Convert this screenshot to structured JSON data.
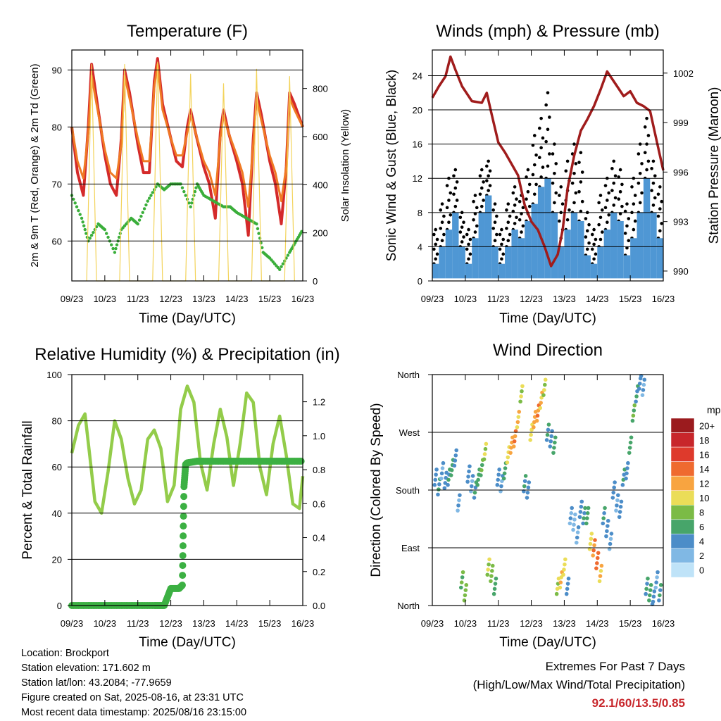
{
  "panels": {
    "temperature": {
      "title": "Temperature (F)",
      "ylabel_left": "2m & 9m T (Red, Orange) & 2m Td (Green)",
      "ylabel_right": "Solar Insolation (Yellow)",
      "xlabel": "Time (Day/UTC)"
    },
    "winds": {
      "title": "Winds (mph) & Pressure (mb)",
      "ylabel_left": "Sonic Wind & Gust (Blue, Black)",
      "ylabel_right": "Station Pressure (Maroon)",
      "xlabel": "Time (Day/UTC)"
    },
    "humidity": {
      "title": "Relative Humidity (%) & Precipitation (in)",
      "ylabel_left": "Percent & Total Rainfall",
      "xlabel": "Time (Day/UTC)"
    },
    "direction": {
      "title": "Wind Direction",
      "ylabel_left": "Direction (Colored By Speed)",
      "xlabel": "Time (Day/UTC)",
      "colorbar_title": "mph"
    }
  },
  "info": {
    "location": "Location: Brockport",
    "elevation": "Station elevation: 171.602 m",
    "latlon": "Station lat/lon: 43.2084; -77.9659",
    "created": "Figure created on Sat, 2025-08-16, at 23:31 UTC",
    "recent": "Most recent data timestamp: 2025/08/16 23:15:00"
  },
  "extremes": {
    "title": "Extremes For Past 7 Days",
    "subtitle": "(High/Low/Max Wind/Total Precipitation)",
    "values": "92.1/60/13.5/0.85"
  },
  "colors": {
    "temp2m": "#d42a2a",
    "temp9m": "#f07a24",
    "dewpoint": "#3aae3a",
    "solar": "#f3d35a",
    "gust": "#000000",
    "wind": "#4f97d4",
    "pressure": "#a01c1c",
    "rh": "#93cc4a",
    "precip": "#3cb043"
  },
  "chart_data": [
    {
      "type": "line",
      "name": "temperature",
      "x_ticks": [
        "09/23",
        "10/23",
        "11/23",
        "12/23",
        "13/23",
        "14/23",
        "15/23",
        "16/23"
      ],
      "xlim": [
        0,
        7
      ],
      "ylim": [
        53,
        93.5
      ],
      "y_ticks": [
        60,
        70,
        80,
        90
      ],
      "y2lim": [
        0,
        960
      ],
      "y2_ticks": [
        0,
        200,
        400,
        600,
        800
      ],
      "series": [
        {
          "color_key": "temp2m",
          "axis": "y",
          "x": [
            0,
            0.17,
            0.35,
            0.5,
            0.6,
            0.75,
            1.0,
            1.17,
            1.35,
            1.5,
            1.6,
            1.75,
            2.0,
            2.17,
            2.35,
            2.5,
            2.6,
            2.75,
            3.0,
            3.17,
            3.35,
            3.5,
            3.6,
            3.75,
            4.0,
            4.17,
            4.35,
            4.5,
            4.6,
            4.75,
            5.0,
            5.17,
            5.35,
            5.5,
            5.6,
            5.75,
            6.0,
            6.17,
            6.35,
            6.5,
            6.6,
            6.75,
            7.0
          ],
          "y": [
            80,
            72,
            68,
            80,
            91,
            85,
            75,
            70,
            68,
            78,
            90,
            86,
            77,
            72,
            72,
            88,
            92,
            84,
            78,
            74,
            73,
            80,
            83,
            79,
            73,
            70,
            64,
            79,
            83,
            79,
            74,
            70,
            61,
            78,
            86,
            82,
            74,
            70,
            63,
            73,
            86,
            84,
            80
          ]
        },
        {
          "color_key": "temp9m",
          "axis": "y",
          "x": [
            0,
            0.17,
            0.35,
            0.5,
            0.6,
            0.75,
            1.0,
            1.17,
            1.35,
            1.5,
            1.6,
            1.75,
            2.0,
            2.17,
            2.35,
            2.5,
            2.6,
            2.75,
            3.0,
            3.17,
            3.35,
            3.5,
            3.6,
            3.75,
            4.0,
            4.17,
            4.35,
            4.5,
            4.6,
            4.75,
            5.0,
            5.17,
            5.35,
            5.5,
            5.6,
            5.75,
            6.0,
            6.17,
            6.35,
            6.5,
            6.6,
            6.75,
            7.0
          ],
          "y": [
            80,
            74,
            71,
            79,
            89,
            84,
            76,
            72,
            71,
            77,
            89,
            85,
            78,
            74,
            74,
            87,
            91,
            83,
            78,
            75,
            75,
            79,
            82,
            79,
            74,
            72,
            68,
            78,
            82,
            79,
            75,
            72,
            66,
            77,
            85,
            81,
            75,
            72,
            67,
            73,
            85,
            83,
            80
          ]
        },
        {
          "color_key": "dewpoint",
          "axis": "y",
          "x": [
            0,
            0.3,
            0.5,
            0.8,
            1.0,
            1.3,
            1.5,
            1.8,
            2.0,
            2.3,
            2.6,
            2.8,
            3.0,
            3.3,
            3.6,
            3.8,
            4.0,
            4.3,
            4.6,
            4.8,
            5.0,
            5.3,
            5.6,
            5.8,
            6.0,
            6.3,
            6.6,
            6.8,
            7.0
          ],
          "y": [
            68,
            64,
            60,
            63,
            62,
            58,
            62,
            64,
            63,
            67,
            70,
            69,
            70,
            70,
            66,
            70,
            68,
            67,
            66,
            66,
            65,
            64,
            63,
            58,
            57,
            55,
            58,
            60,
            62
          ]
        },
        {
          "color_key": "solar",
          "axis": "y2",
          "x": [
            0.45,
            0.6,
            0.75,
            1.45,
            1.6,
            1.75,
            2.45,
            2.6,
            2.75,
            3.45,
            3.6,
            3.75,
            4.45,
            4.6,
            4.75,
            5.45,
            5.6,
            5.75,
            6.45,
            6.6,
            6.75
          ],
          "y": [
            0,
            900,
            0,
            0,
            900,
            0,
            0,
            910,
            0,
            0,
            860,
            0,
            0,
            820,
            0,
            0,
            880,
            0,
            0,
            850,
            0
          ]
        }
      ]
    },
    {
      "type": "scatter",
      "name": "winds",
      "x_ticks": [
        "09/23",
        "10/23",
        "11/23",
        "12/23",
        "13/23",
        "14/23",
        "15/23",
        "16/23"
      ],
      "xlim": [
        0,
        7
      ],
      "ylim": [
        0,
        27
      ],
      "y_ticks": [
        0,
        4,
        8,
        12,
        16,
        20,
        24
      ],
      "y2lim": [
        989.4,
        1003.4
      ],
      "y2_ticks": [
        990,
        993,
        996,
        999,
        1002
      ],
      "series": [
        {
          "color_key": "gust",
          "axis": "y",
          "x": [
            0.1,
            0.3,
            0.5,
            0.7,
            0.9,
            1.1,
            1.3,
            1.5,
            1.7,
            1.9,
            2.1,
            2.3,
            2.5,
            2.7,
            2.9,
            3.1,
            3.3,
            3.5,
            3.7,
            3.9,
            4.1,
            4.3,
            4.5,
            4.7,
            4.9,
            5.1,
            5.3,
            5.5,
            5.7,
            5.9,
            6.1,
            6.3,
            6.5,
            6.7,
            6.9
          ],
          "y": [
            6,
            9,
            12,
            13,
            8,
            6,
            10,
            13,
            14,
            9,
            6,
            9,
            11,
            10,
            13,
            17,
            19,
            22,
            16,
            11,
            14,
            16,
            15,
            8,
            6,
            10,
            12,
            14,
            13,
            9,
            12,
            16,
            19,
            14,
            11
          ]
        },
        {
          "color_key": "wind",
          "axis": "y",
          "x": [
            0.1,
            0.3,
            0.5,
            0.7,
            0.9,
            1.1,
            1.3,
            1.5,
            1.7,
            1.9,
            2.1,
            2.3,
            2.5,
            2.7,
            2.9,
            3.1,
            3.3,
            3.5,
            3.7,
            3.9,
            4.1,
            4.3,
            4.5,
            4.7,
            4.9,
            5.1,
            5.3,
            5.5,
            5.7,
            5.9,
            6.1,
            6.3,
            6.5,
            6.7,
            6.9
          ],
          "y": [
            2,
            4,
            6,
            8,
            4,
            2,
            5,
            8,
            10,
            4,
            2,
            4,
            6,
            5,
            7,
            9,
            11,
            12,
            8,
            4,
            6,
            8,
            7,
            3,
            2,
            4,
            6,
            8,
            7,
            3,
            5,
            8,
            12,
            8,
            5
          ]
        },
        {
          "color_key": "pressure",
          "axis": "y2",
          "x": [
            0,
            0.2,
            0.4,
            0.55,
            0.7,
            0.9,
            1.2,
            1.5,
            1.65,
            1.8,
            2.0,
            2.2,
            2.4,
            2.6,
            2.8,
            3.0,
            3.2,
            3.4,
            3.6,
            3.8,
            3.95,
            4.1,
            4.3,
            4.5,
            4.7,
            4.9,
            5.1,
            5.3,
            5.6,
            5.8,
            6.0,
            6.2,
            6.4,
            6.6,
            6.8,
            7.0
          ],
          "y": [
            1000.5,
            1001.2,
            1001.8,
            1003.0,
            1002.2,
            1001.2,
            1000.3,
            1000.2,
            1000.8,
            999.5,
            997.8,
            997.2,
            996.5,
            995.8,
            994.0,
            993.0,
            992.5,
            991.5,
            990.3,
            991.0,
            992.5,
            995.0,
            997.0,
            998.5,
            999.2,
            1000.0,
            1001.0,
            1002.1,
            1001.2,
            1000.6,
            1000.9,
            1000.2,
            1000.0,
            999.7,
            997.9,
            996.1
          ]
        }
      ]
    },
    {
      "type": "line",
      "name": "humidity",
      "x_ticks": [
        "09/23",
        "10/23",
        "11/23",
        "12/23",
        "13/23",
        "14/23",
        "15/23",
        "16/23"
      ],
      "xlim": [
        0,
        7
      ],
      "ylim": [
        0,
        100
      ],
      "y_ticks": [
        0,
        20,
        40,
        60,
        80,
        100
      ],
      "y2lim": [
        0,
        1.36
      ],
      "y2_ticks": [
        0.0,
        0.2,
        0.4,
        0.6,
        0.8,
        1.0,
        1.2
      ],
      "series": [
        {
          "color_key": "rh",
          "axis": "y",
          "x": [
            0,
            0.2,
            0.4,
            0.55,
            0.7,
            0.9,
            1.1,
            1.3,
            1.5,
            1.7,
            1.9,
            2.1,
            2.3,
            2.5,
            2.7,
            2.9,
            3.1,
            3.3,
            3.5,
            3.7,
            3.9,
            4.1,
            4.3,
            4.5,
            4.7,
            4.9,
            5.1,
            5.3,
            5.5,
            5.7,
            5.9,
            6.1,
            6.3,
            6.5,
            6.7,
            6.9,
            7.0
          ],
          "y": [
            66,
            78,
            83,
            64,
            45,
            40,
            58,
            80,
            72,
            55,
            44,
            50,
            72,
            76,
            68,
            45,
            52,
            85,
            95,
            88,
            62,
            50,
            70,
            85,
            73,
            52,
            70,
            92,
            88,
            60,
            48,
            70,
            82,
            65,
            44,
            42,
            56
          ]
        },
        {
          "color_key": "precip",
          "axis": "y2",
          "x": [
            0,
            0.5,
            1.0,
            1.5,
            2.0,
            2.5,
            2.8,
            3.0,
            3.25,
            3.35,
            3.4,
            3.45,
            3.5,
            3.8,
            4.0,
            4.5,
            5.0,
            5.5,
            6.0,
            6.5,
            7.0
          ],
          "y": [
            0.0,
            0.0,
            0.0,
            0.0,
            0.0,
            0.0,
            0.0,
            0.1,
            0.1,
            0.12,
            0.7,
            0.83,
            0.84,
            0.85,
            0.85,
            0.85,
            0.85,
            0.85,
            0.85,
            0.85,
            0.85
          ]
        }
      ]
    },
    {
      "type": "scatter",
      "name": "wind_direction",
      "x_ticks": [
        "09/23",
        "10/23",
        "11/23",
        "12/23",
        "13/23",
        "14/23",
        "15/23",
        "16/23"
      ],
      "xlim": [
        0,
        7
      ],
      "ylim": [
        0,
        360
      ],
      "y_ticks": [
        "North",
        "East",
        "South",
        "West",
        "North"
      ],
      "colorbar": {
        "labels": [
          "20+",
          "18",
          "16",
          "14",
          "12",
          "10",
          "8",
          "6",
          "4",
          "2",
          "0"
        ],
        "colors": [
          "#9b1b1e",
          "#c8262b",
          "#de3a2c",
          "#ef6a2f",
          "#f8a440",
          "#ebdd58",
          "#7bbb46",
          "#47a56a",
          "#4c8dc8",
          "#80b8e4",
          "#bfe3f8"
        ]
      },
      "points": {
        "x": [
          0.1,
          0.2,
          0.3,
          0.4,
          0.5,
          0.6,
          0.7,
          0.8,
          0.9,
          1.0,
          1.1,
          1.2,
          1.3,
          1.4,
          1.5,
          1.6,
          1.7,
          1.8,
          1.9,
          2.0,
          2.1,
          2.2,
          2.3,
          2.4,
          2.5,
          2.6,
          2.7,
          2.8,
          2.9,
          3.0,
          3.1,
          3.2,
          3.3,
          3.4,
          3.5,
          3.6,
          3.7,
          3.8,
          3.9,
          4.0,
          4.1,
          4.2,
          4.3,
          4.4,
          4.5,
          4.6,
          4.7,
          4.8,
          4.9,
          5.0,
          5.1,
          5.2,
          5.3,
          5.4,
          5.5,
          5.6,
          5.7,
          5.8,
          5.9,
          6.0,
          6.1,
          6.2,
          6.3,
          6.4,
          6.5,
          6.6,
          6.7,
          6.8,
          6.9
        ],
        "y": [
          200,
          185,
          210,
          195,
          200,
          215,
          230,
          160,
          40,
          20,
          205,
          190,
          180,
          200,
          215,
          240,
          60,
          50,
          30,
          200,
          190,
          210,
          235,
          250,
          260,
          290,
          330,
          190,
          180,
          270,
          290,
          300,
          320,
          340,
          270,
          260,
          250,
          30,
          40,
          60,
          30,
          140,
          130,
          110,
          150,
          140,
          140,
          100,
          90,
          70,
          50,
          140,
          120,
          100,
          180,
          160,
          150,
          200,
          210,
          250,
          300,
          330,
          350,
          340,
          30,
          20,
          10,
          40,
          20
        ],
        "speeds": [
          3,
          4,
          2,
          3,
          4,
          5,
          3,
          2,
          6,
          7,
          3,
          2,
          4,
          5,
          6,
          8,
          8,
          7,
          5,
          3,
          2,
          5,
          9,
          11,
          12,
          10,
          8,
          4,
          3,
          9,
          11,
          12,
          10,
          8,
          4,
          3,
          5,
          8,
          10,
          9,
          3,
          2,
          1,
          2,
          3,
          4,
          5,
          9,
          12,
          13,
          10,
          4,
          3,
          2,
          3,
          2,
          3,
          4,
          3,
          5,
          6,
          4,
          3,
          2,
          4,
          5,
          3,
          2,
          4
        ]
      }
    }
  ]
}
